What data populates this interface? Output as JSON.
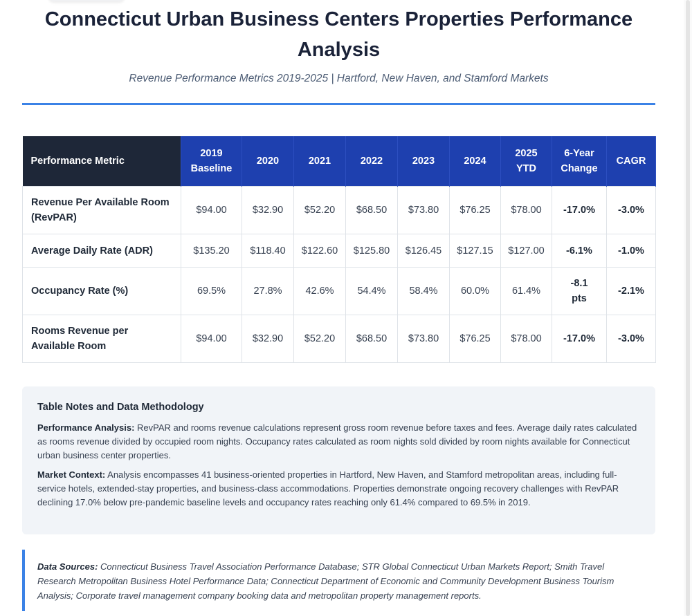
{
  "header": {
    "title": "Connecticut Urban Business Centers Properties Performance Analysis",
    "subtitle": "Revenue Performance Metrics 2019-2025 | Hartford, New Haven, and Stamford Markets"
  },
  "table": {
    "headers": [
      "Performance Metric",
      "2019 Baseline",
      "2020",
      "2021",
      "2022",
      "2023",
      "2024",
      "2025 YTD",
      "6-Year Change",
      "CAGR"
    ],
    "rows": [
      [
        "Revenue Per Available Room (RevPAR)",
        "$94.00",
        "$32.90",
        "$52.20",
        "$68.50",
        "$73.80",
        "$76.25",
        "$78.00",
        "-17.0%",
        "-3.0%"
      ],
      [
        "Average Daily Rate (ADR)",
        "$135.20",
        "$118.40",
        "$122.60",
        "$125.80",
        "$126.45",
        "$127.15",
        "$127.00",
        "-6.1%",
        "-1.0%"
      ],
      [
        "Occupancy Rate (%)",
        "69.5%",
        "27.8%",
        "42.6%",
        "54.4%",
        "58.4%",
        "60.0%",
        "61.4%",
        "-8.1 pts",
        "-2.1%"
      ],
      [
        "Rooms Revenue per Available Room",
        "$94.00",
        "$32.90",
        "$52.20",
        "$68.50",
        "$73.80",
        "$76.25",
        "$78.00",
        "-17.0%",
        "-3.0%"
      ]
    ]
  },
  "notes": {
    "heading": "Table Notes and Data Methodology",
    "performance_label": "Performance Analysis:",
    "performance_text": "RevPAR and rooms revenue calculations represent gross room revenue before taxes and fees. Average daily rates calculated as rooms revenue divided by occupied room nights. Occupancy rates calculated as room nights sold divided by room nights available for Connecticut urban business center properties.",
    "market_label": "Market Context:",
    "market_text": "Analysis encompasses 41 business-oriented properties in Hartford, New Haven, and Stamford metropolitan areas, including full-service hotels, extended-stay properties, and business-class accommodations. Properties demonstrate ongoing recovery challenges with RevPAR declining 17.0% below pre-pandemic baseline levels and occupancy rates reaching only 61.4% compared to 69.5% in 2019."
  },
  "sources": {
    "label": "Data Sources:",
    "text": "Connecticut Business Travel Association Performance Database; STR Global Connecticut Urban Markets Report; Smith Travel Research Metropolitan Business Hotel Performance Data; Connecticut Department of Economic and Community Development Business Tourism Analysis; Corporate travel management company booking data and metropolitan property management reports."
  },
  "colors": {
    "accent": "#3b82e6",
    "header_blue": "#1e40af",
    "header_dark": "#1e2738"
  }
}
